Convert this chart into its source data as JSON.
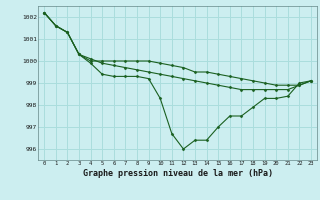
{
  "xlabel": "Graphe pression niveau de la mer (hPa)",
  "ylim": [
    995.5,
    1002.5
  ],
  "xlim": [
    -0.5,
    23.5
  ],
  "yticks": [
    996,
    997,
    998,
    999,
    1000,
    1001,
    1002
  ],
  "xticks": [
    0,
    1,
    2,
    3,
    4,
    5,
    6,
    7,
    8,
    9,
    10,
    11,
    12,
    13,
    14,
    15,
    16,
    17,
    18,
    19,
    20,
    21,
    22,
    23
  ],
  "bg_color": "#cceef0",
  "grid_color": "#aadddd",
  "line_color": "#1a6020",
  "series1": [
    1002.2,
    1001.6,
    1001.3,
    1000.3,
    999.9,
    999.4,
    999.3,
    999.3,
    999.3,
    999.2,
    998.3,
    996.7,
    996.0,
    996.4,
    996.4,
    997.0,
    997.5,
    997.5,
    997.9,
    998.3,
    998.3,
    998.4,
    999.0,
    999.1
  ],
  "series2": [
    1002.2,
    1001.6,
    1001.3,
    1000.3,
    1000.1,
    999.9,
    999.8,
    999.7,
    999.6,
    999.5,
    999.4,
    999.3,
    999.2,
    999.1,
    999.0,
    998.9,
    998.8,
    998.7,
    998.7,
    998.7,
    998.7,
    998.7,
    998.9,
    999.1
  ],
  "series3": [
    1002.2,
    1001.6,
    1001.3,
    1000.3,
    1000.0,
    1000.0,
    1000.0,
    1000.0,
    1000.0,
    1000.0,
    999.9,
    999.8,
    999.7,
    999.5,
    999.5,
    999.4,
    999.3,
    999.2,
    999.1,
    999.0,
    998.9,
    998.9,
    998.9,
    999.1
  ]
}
